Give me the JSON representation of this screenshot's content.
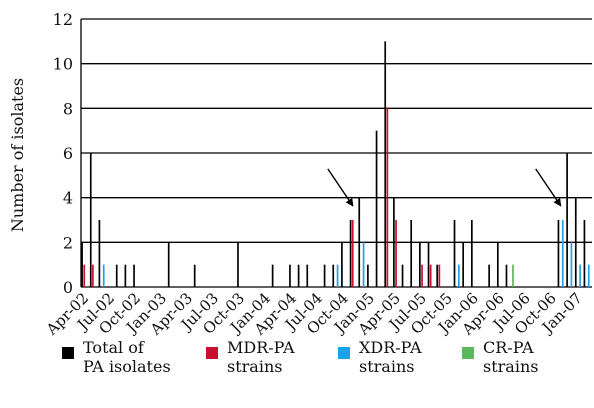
{
  "chart_data": {
    "type": "bar",
    "ylabel": "Number of isolates",
    "ylim": [
      0,
      12
    ],
    "yticks": [
      0,
      2,
      4,
      6,
      8,
      10,
      12
    ],
    "grid": "horizontal",
    "legend_position": "bottom",
    "months": [
      "Apr-02",
      "May-02",
      "Jun-02",
      "Jul-02",
      "Aug-02",
      "Sep-02",
      "Oct-02",
      "Nov-02",
      "Dec-02",
      "Jan-03",
      "Feb-03",
      "Mar-03",
      "Apr-03",
      "May-03",
      "Jun-03",
      "Jul-03",
      "Aug-03",
      "Sep-03",
      "Oct-03",
      "Nov-03",
      "Dec-03",
      "Jan-04",
      "Feb-04",
      "Mar-04",
      "Apr-04",
      "May-04",
      "Jun-04",
      "Jul-04",
      "Aug-04",
      "Sep-04",
      "Oct-04",
      "Nov-04",
      "Dec-04",
      "Jan-05",
      "Feb-05",
      "Mar-05",
      "Apr-05",
      "May-05",
      "Jun-05",
      "Jul-05",
      "Aug-05",
      "Sep-05",
      "Oct-05",
      "Nov-05",
      "Dec-05",
      "Jan-06",
      "Feb-06",
      "Mar-06",
      "Apr-06",
      "May-06",
      "Jun-06",
      "Jul-06",
      "Aug-06",
      "Sep-06",
      "Oct-06",
      "Nov-06",
      "Dec-06",
      "Jan-07",
      "Feb-07"
    ],
    "x_tick_labels": [
      "Apr-02",
      "Jul-02",
      "Oct-02",
      "Jan-03",
      "Apr-03",
      "Jul-03",
      "Oct-03",
      "Jan-04",
      "Apr-04",
      "Jul-04",
      "Oct-04",
      "Jan-05",
      "Apr-05",
      "Jul-05",
      "Oct-05",
      "Jan-06",
      "Apr-06",
      "Jul-06",
      "Oct-06",
      "Jan-07"
    ],
    "series": [
      {
        "name": "Total of\nPA isolates",
        "color": "#000000",
        "values": [
          2,
          6,
          3,
          0,
          1,
          1,
          1,
          0,
          0,
          0,
          2,
          0,
          0,
          1,
          0,
          0,
          0,
          0,
          2,
          0,
          0,
          0,
          1,
          0,
          1,
          1,
          1,
          0,
          1,
          1,
          2,
          3,
          4,
          1,
          7,
          11,
          4,
          1,
          3,
          2,
          2,
          1,
          0,
          3,
          2,
          3,
          0,
          1,
          2,
          1,
          0,
          0,
          0,
          0,
          0,
          3,
          6,
          4,
          3
        ]
      },
      {
        "name": "MDR-PA\nstrains",
        "color": "#c8102e",
        "values": [
          1,
          1,
          0,
          0,
          0,
          0,
          0,
          0,
          0,
          0,
          0,
          0,
          0,
          0,
          0,
          0,
          0,
          0,
          0,
          0,
          0,
          0,
          0,
          0,
          0,
          0,
          0,
          0,
          0,
          0,
          0,
          3,
          0,
          0,
          0,
          8,
          3,
          0,
          0,
          1,
          1,
          1,
          0,
          0,
          0,
          0,
          0,
          0,
          0,
          0,
          0,
          0,
          0,
          0,
          0,
          0,
          0,
          0,
          0
        ]
      },
      {
        "name": "XDR-PA\nstrains",
        "color": "#1aa3e8",
        "values": [
          0,
          0,
          1,
          0,
          0,
          0,
          0,
          0,
          0,
          0,
          0,
          0,
          0,
          0,
          0,
          0,
          0,
          0,
          0,
          0,
          0,
          0,
          0,
          0,
          0,
          0,
          0,
          0,
          0,
          1,
          0,
          0,
          2,
          0,
          0,
          0,
          0,
          0,
          0,
          0,
          0,
          0,
          0,
          1,
          0,
          0,
          0,
          0,
          0,
          0,
          0,
          0,
          0,
          0,
          0,
          3,
          2,
          1,
          1
        ]
      },
      {
        "name": "CR-PA\nstrains",
        "color": "#5cb85c",
        "values": [
          0,
          0,
          0,
          0,
          0,
          0,
          0,
          0,
          0,
          0,
          0,
          0,
          0,
          0,
          0,
          0,
          0,
          0,
          0,
          0,
          0,
          0,
          0,
          0,
          0,
          0,
          0,
          0,
          0,
          0,
          0,
          0,
          0,
          0,
          0,
          0,
          0,
          0,
          0,
          0,
          0,
          0,
          0,
          0,
          0,
          0,
          0,
          0,
          0,
          1,
          0,
          0,
          0,
          0,
          0,
          0,
          0,
          0,
          0
        ]
      }
    ],
    "annotations": [
      {
        "type": "arrow",
        "points_to_month": "Nov-04"
      },
      {
        "type": "arrow",
        "points_to_month": "Nov-06"
      }
    ]
  }
}
